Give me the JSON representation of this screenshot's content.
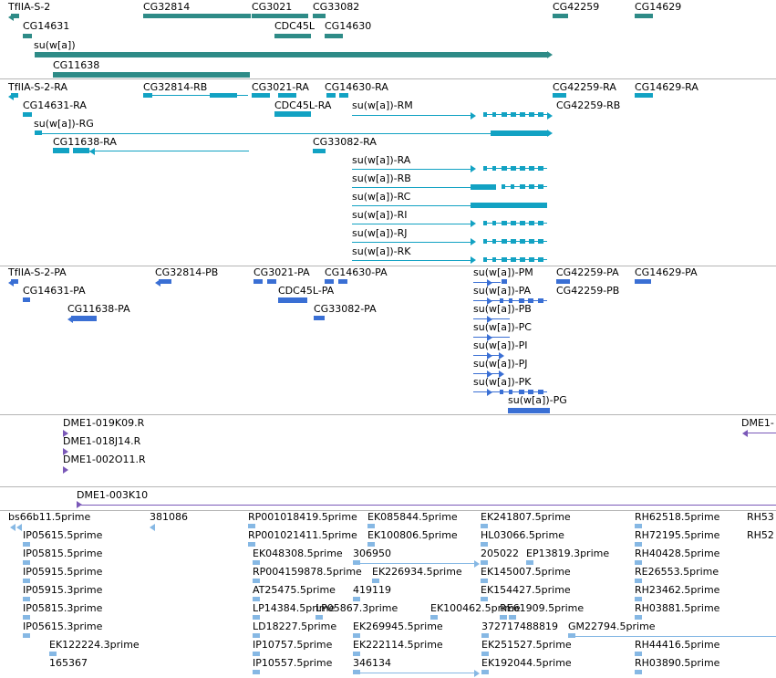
{
  "palette": {
    "gene": "#2e8b87",
    "rna": "#12a2c3",
    "protein": "#3a6fd4",
    "clone": "#7a58b8",
    "est": "#86b8e4",
    "separator": "#b5b5b5"
  },
  "tracks": [
    {
      "name": "gene-track",
      "color_key": "gene",
      "features": [
        {
          "label": "TfIIA-S-2"
        },
        {
          "label": "CG32814"
        },
        {
          "label": "CG3021"
        },
        {
          "label": "CG33082"
        },
        {
          "label": "CG42259"
        },
        {
          "label": "CG14629"
        },
        {
          "label": "CG14631"
        },
        {
          "label": "CDC45L"
        },
        {
          "label": "CG14630"
        },
        {
          "label": "su(w[a])"
        },
        {
          "label": "CG11638"
        }
      ]
    },
    {
      "name": "transcript-track",
      "color_key": "rna",
      "features": [
        {
          "label": "TfIIA-S-2-RA"
        },
        {
          "label": "CG32814-RB"
        },
        {
          "label": "CG3021-RA"
        },
        {
          "label": "CG14630-RA"
        },
        {
          "label": "CG42259-RA"
        },
        {
          "label": "CG14629-RA"
        },
        {
          "label": "CG14631-RA"
        },
        {
          "label": "CDC45L-RA"
        },
        {
          "label": "su(w[a])-RM"
        },
        {
          "label": "CG42259-RB"
        },
        {
          "label": "su(w[a])-RG"
        },
        {
          "label": "CG11638-RA"
        },
        {
          "label": "CG33082-RA"
        },
        {
          "label": "su(w[a])-RA"
        },
        {
          "label": "su(w[a])-RB"
        },
        {
          "label": "su(w[a])-RC"
        },
        {
          "label": "su(w[a])-RI"
        },
        {
          "label": "su(w[a])-RJ"
        },
        {
          "label": "su(w[a])-RK"
        }
      ]
    },
    {
      "name": "protein-track",
      "color_key": "protein",
      "features": [
        {
          "label": "TfIIA-S-2-PA"
        },
        {
          "label": "CG32814-PB"
        },
        {
          "label": "CG3021-PA"
        },
        {
          "label": "CG14630-PA"
        },
        {
          "label": "su(w[a])-PM"
        },
        {
          "label": "CG42259-PA"
        },
        {
          "label": "CG14629-PA"
        },
        {
          "label": "CG14631-PA"
        },
        {
          "label": "CDC45L-PA"
        },
        {
          "label": "su(w[a])-PA"
        },
        {
          "label": "CG42259-PB"
        },
        {
          "label": "CG11638-PA"
        },
        {
          "label": "CG33082-PA"
        },
        {
          "label": "su(w[a])-PB"
        },
        {
          "label": "su(w[a])-PC"
        },
        {
          "label": "su(w[a])-PI"
        },
        {
          "label": "su(w[a])-PJ"
        },
        {
          "label": "su(w[a])-PK"
        },
        {
          "label": "su(w[a])-PG"
        }
      ]
    },
    {
      "name": "clone-track",
      "color_key": "clone",
      "features": [
        {
          "label": "DME1-019K09.R"
        },
        {
          "label": "DME1-018J14.R"
        },
        {
          "label": "DME1-002O11.R"
        },
        {
          "label": "DME1-"
        }
      ]
    },
    {
      "name": "bac-track",
      "color_key": "clone",
      "features": [
        {
          "label": "DME1-003K10"
        }
      ]
    },
    {
      "name": "est-track",
      "color_key": "est",
      "features": [
        {
          "label": "bs66b11.5prime"
        },
        {
          "label": "381086"
        },
        {
          "label": "RP001018419.5prime"
        },
        {
          "label": "EK085844.5prime"
        },
        {
          "label": "EK241807.5prime"
        },
        {
          "label": "RH62518.5prime"
        },
        {
          "label": "RH53"
        },
        {
          "label": "IP05615.5prime"
        },
        {
          "label": "RP001021411.5prime"
        },
        {
          "label": "EK100806.5prime"
        },
        {
          "label": "HL03066.5prime"
        },
        {
          "label": "RH72195.5prime"
        },
        {
          "label": "RH52"
        },
        {
          "label": "IP05815.5prime"
        },
        {
          "label": "EK048308.5prime"
        },
        {
          "label": "306950"
        },
        {
          "label": "205022"
        },
        {
          "label": "EP13819.3prime"
        },
        {
          "label": "RH40428.5prime"
        },
        {
          "label": "IP05915.5prime"
        },
        {
          "label": "RP004159878.5prime"
        },
        {
          "label": "EK226934.5prime"
        },
        {
          "label": "EK145007.5prime"
        },
        {
          "label": "RE26553.5prime"
        },
        {
          "label": "IP05915.3prime"
        },
        {
          "label": "AT25475.5prime"
        },
        {
          "label": "419119"
        },
        {
          "label": "EK154427.5prime"
        },
        {
          "label": "RH23462.5prime"
        },
        {
          "label": "IP05815.3prime"
        },
        {
          "label": "LP14384.5prime"
        },
        {
          "label": "LP05867.3prime"
        },
        {
          "label": "EK100462.5prime"
        },
        {
          "label": "RE61909.5prime"
        },
        {
          "label": "RH03881.5prime"
        },
        {
          "label": "IP05615.3prime"
        },
        {
          "label": "LD18227.5prime"
        },
        {
          "label": "EK269945.5prime"
        },
        {
          "label": "372717488819"
        },
        {
          "label": "GM22794.5prime"
        },
        {
          "label": "EK122224.3prime"
        },
        {
          "label": "IP10757.5prime"
        },
        {
          "label": "EK222114.5prime"
        },
        {
          "label": "EK251527.5prime"
        },
        {
          "label": "RH44416.5prime"
        },
        {
          "label": "165367"
        },
        {
          "label": "IP10557.5prime"
        },
        {
          "label": "346134"
        },
        {
          "label": "EK192044.5prime"
        },
        {
          "label": "RH03890.5prime"
        }
      ]
    }
  ]
}
